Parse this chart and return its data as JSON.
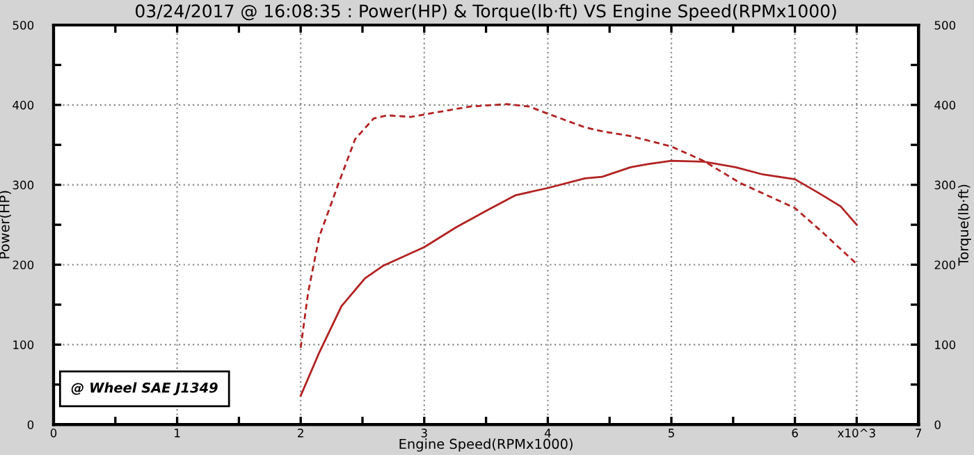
{
  "chart_data": {
    "type": "line",
    "title": "03/24/2017 @ 16:08:35 : Power(HP) & Torque(lb·ft) VS Engine Speed(RPMx1000)",
    "xlabel": "Engine Speed(RPMx1000)",
    "ylabel": "Power(HP)",
    "y2label": "Torque(lb·ft)",
    "annotations": [
      "@ Wheel SAE J1349"
    ],
    "xlim": [
      0,
      7
    ],
    "ylim": [
      0,
      500
    ],
    "y2lim": [
      0,
      500
    ],
    "xticks": [
      0,
      {
        "value": 0.5,
        "label": null
      },
      1,
      {
        "value": 1.5,
        "label": null
      },
      2,
      {
        "value": 2.5,
        "label": null
      },
      3,
      {
        "value": 3.5,
        "label": null
      },
      4,
      {
        "value": 4.5,
        "label": null
      },
      5,
      {
        "value": 5.5,
        "label": null
      },
      6,
      {
        "value": 6.5,
        "label": "x10^3"
      },
      7
    ],
    "yticks": [
      0,
      {
        "value": 50,
        "label": null
      },
      100,
      {
        "value": 150,
        "label": null
      },
      200,
      {
        "value": 250,
        "label": null
      },
      300,
      {
        "value": 350,
        "label": null
      },
      400,
      {
        "value": 450,
        "label": null
      },
      500
    ],
    "y2ticks": [
      0,
      {
        "value": 50,
        "label": null
      },
      100,
      {
        "value": 150,
        "label": null
      },
      200,
      {
        "value": 250,
        "label": null
      },
      300,
      {
        "value": 350,
        "label": null
      },
      400,
      {
        "value": 450,
        "label": null
      },
      500
    ],
    "grid": true,
    "series": [
      {
        "color": "#b22222",
        "line_style": "solid",
        "x": [
          2.0,
          2.15,
          2.33,
          2.52,
          2.67,
          3.0,
          3.26,
          3.52,
          3.74,
          4.0,
          4.3,
          4.44,
          4.67,
          4.81,
          5.0,
          5.26,
          5.52,
          5.74,
          6.0,
          6.19,
          6.37,
          6.5
        ],
        "values": [
          36,
          90,
          148,
          183,
          199,
          222,
          247,
          269,
          287,
          296,
          308,
          310,
          322,
          326,
          330,
          329,
          322,
          313,
          307,
          290,
          273,
          250
        ]
      },
      {
        "color": "#b22222",
        "line_style": "dashed",
        "x": [
          2.0,
          2.06,
          2.15,
          2.3,
          2.44,
          2.59,
          2.7,
          2.89,
          3.11,
          3.37,
          3.67,
          3.85,
          4.0,
          4.3,
          4.44,
          4.67,
          5.0,
          5.26,
          5.56,
          6.0,
          6.22,
          6.5
        ],
        "values": [
          96,
          165,
          235,
          299,
          357,
          383,
          387,
          385,
          391,
          398,
          401,
          398,
          389,
          372,
          367,
          361,
          348,
          330,
          302,
          271,
          241,
          201
        ]
      }
    ]
  }
}
